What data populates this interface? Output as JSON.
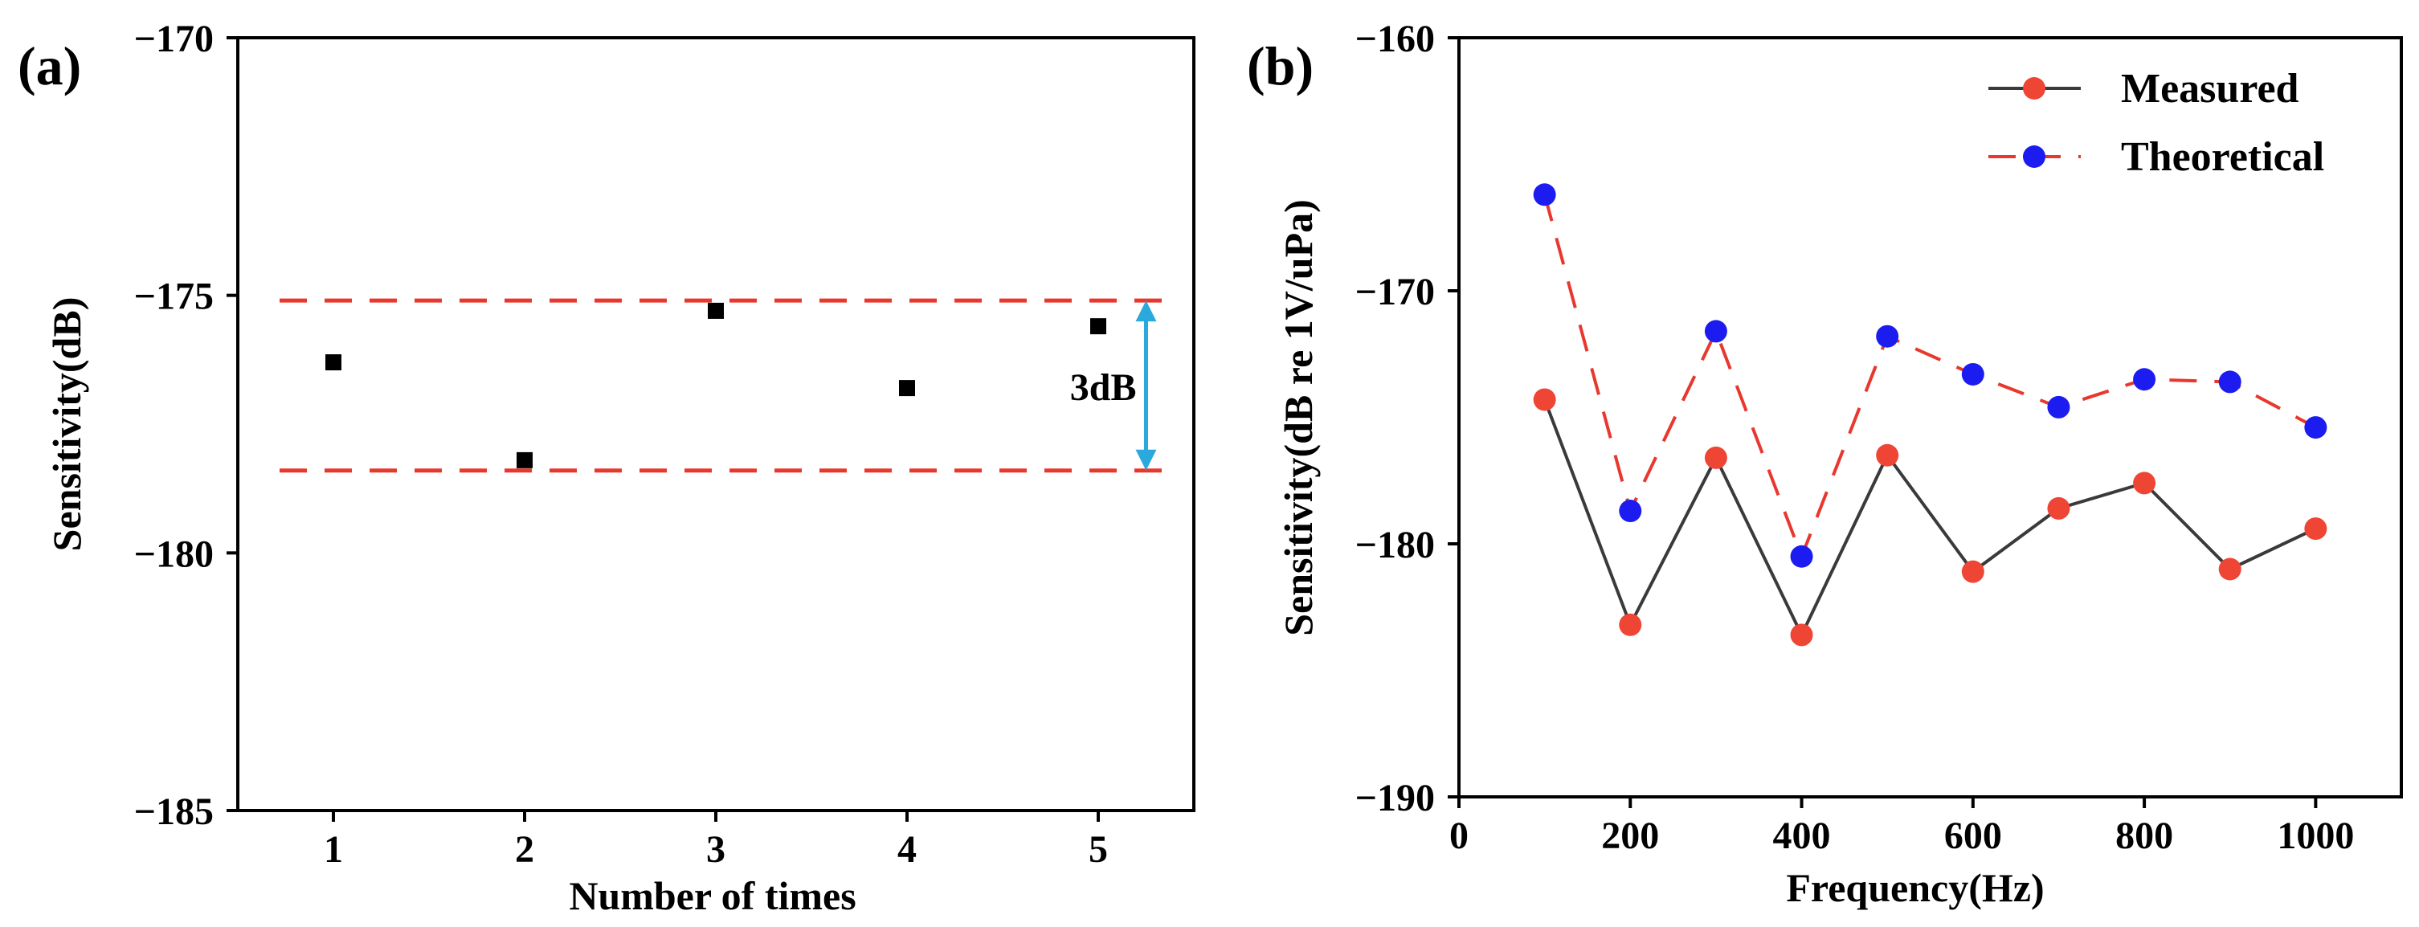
{
  "colors": {
    "axis": "#000000",
    "reference_line": "#e8382e",
    "measured_line": "#3a3a3a",
    "measured_marker": "#ee4535",
    "theoretical_line": "#e8382e",
    "theoretical_marker": "#1c1cf0",
    "arrow": "#2aa9dc",
    "scatter_marker": "#000000"
  },
  "chart_data": [
    {
      "panel_label": "(a)",
      "type": "scatter",
      "title": "",
      "xlabel": "Number of times",
      "ylabel": "Sensitivity(dB)",
      "xlim": [
        0.5,
        5.5
      ],
      "ylim": [
        -185,
        -170
      ],
      "xticks": [
        "1",
        "2",
        "3",
        "4",
        "5"
      ],
      "yticks": [
        "−170",
        "−175",
        "−180",
        "−185"
      ],
      "x": [
        1,
        2,
        3,
        4,
        5
      ],
      "y": [
        -176.3,
        -178.2,
        -175.3,
        -176.8,
        -175.6
      ],
      "reference_lines": [
        -175.1,
        -178.4
      ],
      "annotation": {
        "text": "3dB",
        "x": 5.25,
        "y_from": -175.1,
        "y_to": -178.4
      },
      "marker": "square",
      "grid": false
    },
    {
      "panel_label": "(b)",
      "type": "line",
      "title": "",
      "xlabel": "Frequency(Hz)",
      "ylabel": "Sensitivity(dB re 1V/uPa)",
      "xlim": [
        0,
        1100
      ],
      "ylim": [
        -190,
        -160
      ],
      "xticks": [
        "0",
        "200",
        "400",
        "600",
        "800",
        "1000"
      ],
      "yticks": [
        "−160",
        "−170",
        "−180",
        "−190"
      ],
      "x": [
        100,
        200,
        300,
        400,
        500,
        600,
        700,
        800,
        900,
        1000
      ],
      "series": [
        {
          "name": "Measured",
          "style": "solid",
          "values": [
            -174.3,
            -183.2,
            -176.6,
            -183.6,
            -176.5,
            -181.1,
            -178.6,
            -177.6,
            -181.0,
            -179.4
          ]
        },
        {
          "name": "Theoretical",
          "style": "dashed",
          "values": [
            -166.2,
            -178.7,
            -171.6,
            -180.5,
            -171.8,
            -173.3,
            -174.6,
            -173.5,
            -173.6,
            -175.4
          ]
        }
      ],
      "legend_position": "top-right",
      "grid": false
    }
  ]
}
